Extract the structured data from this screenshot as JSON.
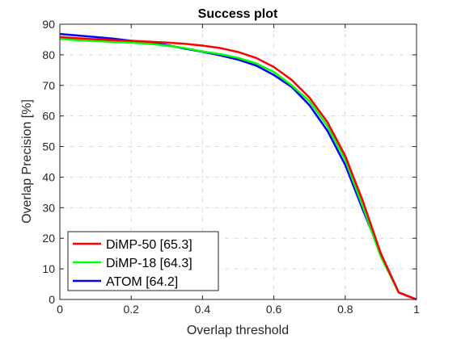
{
  "chart_data": {
    "type": "line",
    "title": "Success plot",
    "xlabel": "Overlap threshold",
    "ylabel": "Overlap Precision [%]",
    "xlim": [
      0,
      1
    ],
    "ylim": [
      0,
      90
    ],
    "xticks": [
      "0",
      "0.2",
      "0.4",
      "0.6",
      "0.8",
      "1"
    ],
    "yticks": [
      "0",
      "10",
      "20",
      "30",
      "40",
      "50",
      "60",
      "70",
      "80",
      "90"
    ],
    "grid": true,
    "legend_position": "bottom-left",
    "x": [
      0,
      0.05,
      0.1,
      0.15,
      0.2,
      0.25,
      0.3,
      0.35,
      0.4,
      0.45,
      0.5,
      0.55,
      0.6,
      0.65,
      0.7,
      0.75,
      0.8,
      0.85,
      0.9,
      0.95,
      1.0
    ],
    "series": [
      {
        "name": "DiMP-50 [65.3]",
        "color": "#ff0000",
        "values": [
          85.8,
          85.4,
          85.1,
          84.8,
          84.6,
          84.3,
          84.0,
          83.6,
          83.0,
          82.2,
          80.9,
          79.0,
          76.0,
          71.8,
          66.0,
          58.0,
          47.0,
          32.0,
          15.0,
          2.3,
          0.0
        ]
      },
      {
        "name": "DiMP-18 [64.3]",
        "color": "#00ff00",
        "values": [
          85.2,
          84.8,
          84.5,
          84.2,
          84.0,
          83.6,
          83.0,
          82.2,
          81.1,
          80.2,
          79.0,
          77.2,
          74.4,
          70.0,
          64.8,
          56.7,
          45.7,
          30.2,
          14.0,
          2.3,
          0.0
        ]
      },
      {
        "name": "ATOM [64.2]",
        "color": "#0000ff",
        "values": [
          86.8,
          86.3,
          85.8,
          85.3,
          84.6,
          84.0,
          83.2,
          82.0,
          81.0,
          79.8,
          78.4,
          76.5,
          73.4,
          69.5,
          63.5,
          55.2,
          44.0,
          29.2,
          15.0,
          2.3,
          0.0
        ]
      }
    ]
  }
}
